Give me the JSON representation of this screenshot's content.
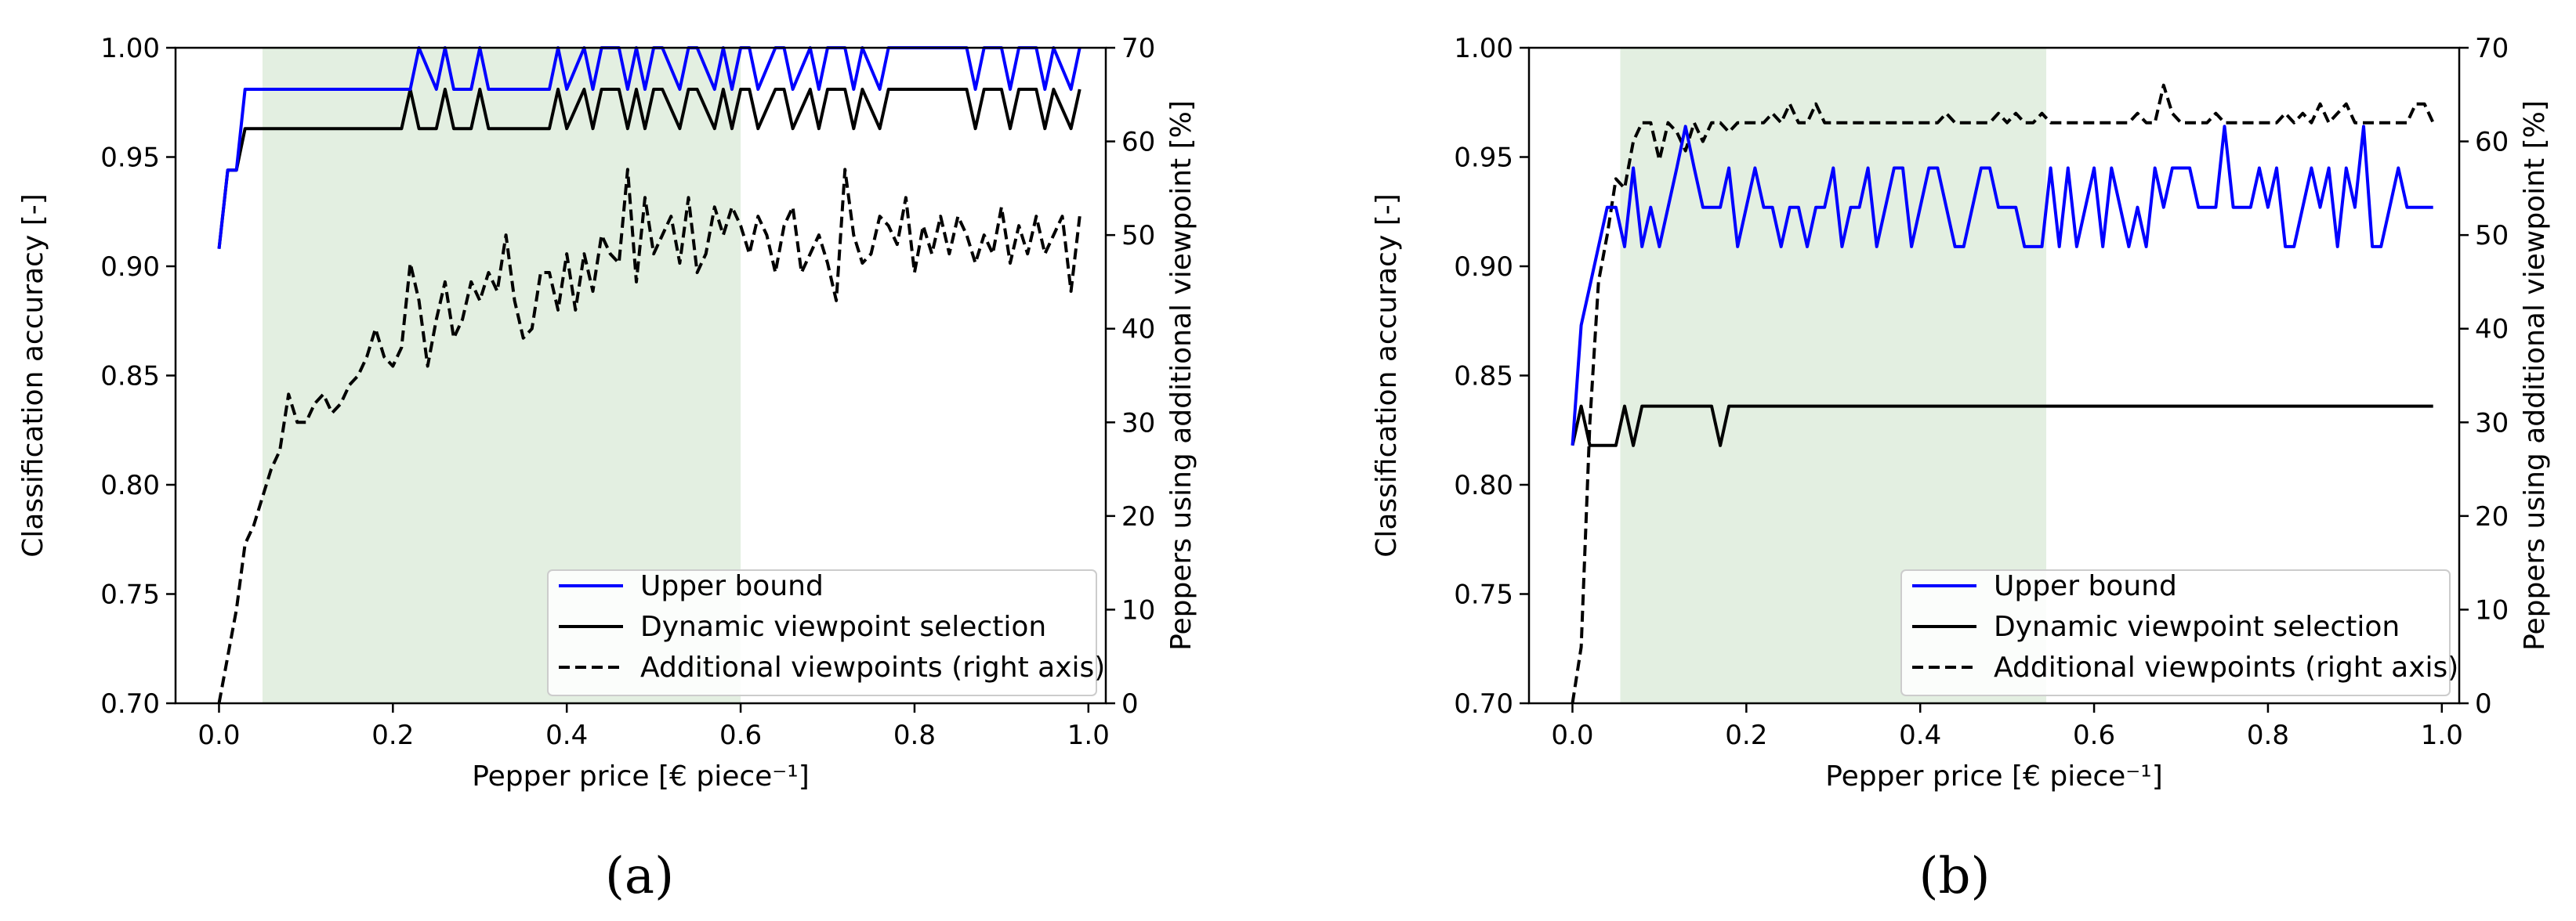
{
  "figure": {
    "colors": {
      "upper_bound": "#0000ff",
      "dynamic": "#000000",
      "additional": "#000000",
      "shade": "#e3efe1"
    }
  },
  "chart_data": [
    {
      "type": "line",
      "panel_label": "(a)",
      "xlabel": "Pepper price [€ piece⁻¹]",
      "ylabel": "Classification accuracy [-]",
      "y2label": "Peppers using additional viewpoint [%]",
      "xlim": [
        -0.05,
        1.02
      ],
      "ylim": [
        0.7,
        1.0
      ],
      "y2lim": [
        0,
        70
      ],
      "xticks": [
        "0.0",
        "0.2",
        "0.4",
        "0.6",
        "0.8",
        "1.0"
      ],
      "yticks": [
        "0.70",
        "0.75",
        "0.80",
        "0.85",
        "0.90",
        "0.95",
        "1.00"
      ],
      "y2ticks": [
        "0",
        "10",
        "20",
        "30",
        "40",
        "50",
        "60",
        "70"
      ],
      "shaded_region": [
        0.05,
        0.6
      ],
      "legend_position": "lower-right",
      "series": [
        {
          "name": "Upper bound",
          "axis": "left",
          "x": [
            0.0,
            0.01,
            0.02,
            0.03,
            0.22,
            0.23,
            0.25,
            0.26,
            0.27,
            0.29,
            0.3,
            0.31,
            0.38,
            0.39,
            0.4,
            0.42,
            0.43,
            0.44,
            0.46,
            0.47,
            0.48,
            0.49,
            0.5,
            0.51,
            0.53,
            0.54,
            0.55,
            0.57,
            0.58,
            0.59,
            0.6,
            0.61,
            0.62,
            0.64,
            0.65,
            0.66,
            0.68,
            0.69,
            0.7,
            0.72,
            0.73,
            0.74,
            0.76,
            0.77,
            0.78,
            0.86,
            0.87,
            0.88,
            0.9,
            0.91,
            0.92,
            0.94,
            0.95,
            0.96,
            0.98,
            0.99
          ],
          "values": [
            0.908,
            0.944,
            0.944,
            0.981,
            0.981,
            1.0,
            0.981,
            1.0,
            0.981,
            0.981,
            1.0,
            0.981,
            0.981,
            1.0,
            0.981,
            1.0,
            0.981,
            1.0,
            1.0,
            0.981,
            1.0,
            0.981,
            1.0,
            1.0,
            0.981,
            1.0,
            1.0,
            0.981,
            1.0,
            0.981,
            1.0,
            1.0,
            0.981,
            1.0,
            1.0,
            0.981,
            1.0,
            0.981,
            1.0,
            1.0,
            0.981,
            1.0,
            0.981,
            1.0,
            1.0,
            1.0,
            0.981,
            1.0,
            1.0,
            0.981,
            1.0,
            1.0,
            0.981,
            1.0,
            0.981,
            1.0
          ]
        },
        {
          "name": "Dynamic viewpoint selection",
          "axis": "left",
          "x": [
            0.0,
            0.01,
            0.02,
            0.03,
            0.21,
            0.22,
            0.23,
            0.25,
            0.26,
            0.27,
            0.29,
            0.3,
            0.31,
            0.38,
            0.39,
            0.4,
            0.42,
            0.43,
            0.44,
            0.46,
            0.47,
            0.48,
            0.49,
            0.5,
            0.51,
            0.53,
            0.54,
            0.55,
            0.57,
            0.58,
            0.59,
            0.6,
            0.61,
            0.62,
            0.64,
            0.65,
            0.66,
            0.68,
            0.69,
            0.7,
            0.72,
            0.73,
            0.74,
            0.76,
            0.77,
            0.78,
            0.86,
            0.87,
            0.88,
            0.9,
            0.91,
            0.92,
            0.94,
            0.95,
            0.96,
            0.98,
            0.99
          ],
          "values": [
            0.908,
            0.944,
            0.944,
            0.963,
            0.963,
            0.981,
            0.963,
            0.963,
            0.981,
            0.963,
            0.963,
            0.981,
            0.963,
            0.963,
            0.981,
            0.963,
            0.981,
            0.963,
            0.981,
            0.981,
            0.963,
            0.981,
            0.963,
            0.981,
            0.981,
            0.963,
            0.981,
            0.981,
            0.963,
            0.981,
            0.963,
            0.981,
            0.981,
            0.963,
            0.981,
            0.981,
            0.963,
            0.981,
            0.963,
            0.981,
            0.981,
            0.963,
            0.981,
            0.963,
            0.981,
            0.981,
            0.981,
            0.963,
            0.981,
            0.981,
            0.963,
            0.981,
            0.981,
            0.963,
            0.981,
            0.963,
            0.981
          ]
        },
        {
          "name": "Additional viewpoints (right axis)",
          "axis": "right",
          "style": "dashed",
          "x": [
            0.0,
            0.01,
            0.02,
            0.03,
            0.04,
            0.05,
            0.06,
            0.07,
            0.08,
            0.09,
            0.1,
            0.11,
            0.12,
            0.13,
            0.14,
            0.15,
            0.16,
            0.17,
            0.18,
            0.19,
            0.2,
            0.21,
            0.22,
            0.23,
            0.24,
            0.25,
            0.26,
            0.27,
            0.28,
            0.29,
            0.3,
            0.31,
            0.32,
            0.33,
            0.34,
            0.35,
            0.36,
            0.37,
            0.38,
            0.39,
            0.4,
            0.41,
            0.42,
            0.43,
            0.44,
            0.45,
            0.46,
            0.47,
            0.48,
            0.49,
            0.5,
            0.51,
            0.52,
            0.53,
            0.54,
            0.55,
            0.56,
            0.57,
            0.58,
            0.59,
            0.6,
            0.61,
            0.62,
            0.63,
            0.64,
            0.65,
            0.66,
            0.67,
            0.68,
            0.69,
            0.7,
            0.71,
            0.72,
            0.73,
            0.74,
            0.75,
            0.76,
            0.77,
            0.78,
            0.79,
            0.8,
            0.81,
            0.82,
            0.83,
            0.84,
            0.85,
            0.86,
            0.87,
            0.88,
            0.89,
            0.9,
            0.91,
            0.92,
            0.93,
            0.94,
            0.95,
            0.96,
            0.97,
            0.98,
            0.99
          ],
          "values": [
            0,
            5,
            10,
            17,
            19,
            22,
            25,
            27,
            33,
            30,
            30,
            32,
            33,
            31,
            32,
            34,
            35,
            37,
            40,
            37,
            36,
            38,
            47,
            43,
            36,
            41,
            45,
            39,
            41,
            45,
            43,
            46,
            44,
            50,
            43,
            39,
            40,
            46,
            46,
            42,
            48,
            42,
            48,
            44,
            50,
            48,
            47,
            57,
            45,
            54,
            48,
            50,
            52,
            47,
            54,
            46,
            48,
            53,
            50,
            53,
            51,
            48,
            52,
            50,
            46,
            51,
            53,
            46,
            48,
            50,
            47,
            43,
            57,
            50,
            47,
            48,
            52,
            51,
            49,
            54,
            46,
            51,
            48,
            52,
            48,
            52,
            50,
            47,
            50,
            48,
            53,
            47,
            51,
            48,
            52,
            48,
            50,
            52,
            44,
            52
          ]
        }
      ]
    },
    {
      "type": "line",
      "panel_label": "(b)",
      "xlabel": "Pepper price [€ piece⁻¹]",
      "ylabel": "Classification accuracy [-]",
      "y2label": "Peppers using additional viewpoint [%]",
      "xlim": [
        -0.05,
        1.02
      ],
      "ylim": [
        0.7,
        1.0
      ],
      "y2lim": [
        0,
        70
      ],
      "xticks": [
        "0.0",
        "0.2",
        "0.4",
        "0.6",
        "0.8",
        "1.0"
      ],
      "yticks": [
        "0.70",
        "0.75",
        "0.80",
        "0.85",
        "0.90",
        "0.95",
        "1.00"
      ],
      "y2ticks": [
        "0",
        "10",
        "20",
        "30",
        "40",
        "50",
        "60",
        "70"
      ],
      "shaded_region": [
        0.055,
        0.545
      ],
      "legend_position": "lower-right",
      "series": [
        {
          "name": "Upper bound",
          "axis": "left",
          "x": [
            0.0,
            0.01,
            0.02,
            0.03,
            0.04,
            0.05,
            0.06,
            0.07,
            0.08,
            0.09,
            0.1,
            0.11,
            0.12,
            0.13,
            0.14,
            0.15,
            0.16,
            0.17,
            0.18,
            0.19,
            0.2,
            0.21,
            0.22,
            0.23,
            0.24,
            0.25,
            0.26,
            0.27,
            0.28,
            0.29,
            0.3,
            0.31,
            0.32,
            0.33,
            0.34,
            0.35,
            0.36,
            0.37,
            0.38,
            0.39,
            0.4,
            0.41,
            0.42,
            0.43,
            0.44,
            0.45,
            0.46,
            0.47,
            0.48,
            0.49,
            0.5,
            0.51,
            0.52,
            0.53,
            0.54,
            0.55,
            0.56,
            0.57,
            0.58,
            0.59,
            0.6,
            0.61,
            0.62,
            0.63,
            0.64,
            0.65,
            0.66,
            0.67,
            0.68,
            0.69,
            0.7,
            0.71,
            0.72,
            0.73,
            0.74,
            0.75,
            0.76,
            0.77,
            0.78,
            0.79,
            0.8,
            0.81,
            0.82,
            0.83,
            0.84,
            0.85,
            0.86,
            0.87,
            0.88,
            0.89,
            0.9,
            0.91,
            0.92,
            0.93,
            0.94,
            0.95,
            0.96,
            0.97,
            0.98,
            0.99
          ],
          "values": [
            0.818,
            0.873,
            0.891,
            0.909,
            0.927,
            0.927,
            0.909,
            0.945,
            0.909,
            0.927,
            0.909,
            0.927,
            0.945,
            0.964,
            0.945,
            0.927,
            0.927,
            0.927,
            0.945,
            0.909,
            0.927,
            0.945,
            0.927,
            0.927,
            0.909,
            0.927,
            0.927,
            0.909,
            0.927,
            0.927,
            0.945,
            0.909,
            0.927,
            0.927,
            0.945,
            0.909,
            0.927,
            0.945,
            0.945,
            0.909,
            0.927,
            0.945,
            0.945,
            0.927,
            0.909,
            0.909,
            0.927,
            0.945,
            0.945,
            0.927,
            0.927,
            0.927,
            0.909,
            0.909,
            0.909,
            0.945,
            0.909,
            0.945,
            0.909,
            0.927,
            0.945,
            0.909,
            0.945,
            0.927,
            0.909,
            0.927,
            0.909,
            0.945,
            0.927,
            0.945,
            0.945,
            0.945,
            0.927,
            0.927,
            0.927,
            0.964,
            0.927,
            0.927,
            0.927,
            0.945,
            0.927,
            0.945,
            0.909,
            0.909,
            0.927,
            0.945,
            0.927,
            0.945,
            0.909,
            0.945,
            0.927,
            0.964,
            0.909,
            0.909,
            0.927,
            0.945,
            0.927,
            0.927,
            0.927,
            0.927
          ]
        },
        {
          "name": "Dynamic viewpoint selection",
          "axis": "left",
          "x": [
            0.0,
            0.01,
            0.02,
            0.03,
            0.05,
            0.06,
            0.07,
            0.08,
            0.16,
            0.17,
            0.18,
            0.99
          ],
          "values": [
            0.818,
            0.836,
            0.818,
            0.818,
            0.818,
            0.836,
            0.818,
            0.836,
            0.836,
            0.818,
            0.836,
            0.836
          ]
        },
        {
          "name": "Additional viewpoints (right axis)",
          "axis": "right",
          "style": "dashed",
          "x": [
            0.0,
            0.01,
            0.02,
            0.03,
            0.04,
            0.05,
            0.06,
            0.07,
            0.08,
            0.09,
            0.1,
            0.11,
            0.12,
            0.13,
            0.14,
            0.15,
            0.16,
            0.17,
            0.18,
            0.19,
            0.2,
            0.21,
            0.22,
            0.23,
            0.24,
            0.25,
            0.26,
            0.27,
            0.28,
            0.29,
            0.3,
            0.31,
            0.32,
            0.33,
            0.34,
            0.35,
            0.36,
            0.37,
            0.38,
            0.39,
            0.4,
            0.41,
            0.42,
            0.43,
            0.44,
            0.45,
            0.46,
            0.47,
            0.48,
            0.49,
            0.5,
            0.51,
            0.52,
            0.53,
            0.54,
            0.55,
            0.56,
            0.57,
            0.58,
            0.59,
            0.6,
            0.61,
            0.62,
            0.63,
            0.64,
            0.65,
            0.66,
            0.67,
            0.68,
            0.69,
            0.7,
            0.71,
            0.72,
            0.73,
            0.74,
            0.75,
            0.76,
            0.77,
            0.78,
            0.79,
            0.8,
            0.81,
            0.82,
            0.83,
            0.84,
            0.85,
            0.86,
            0.87,
            0.88,
            0.89,
            0.9,
            0.91,
            0.92,
            0.93,
            0.94,
            0.95,
            0.96,
            0.97,
            0.98,
            0.99
          ],
          "values": [
            0,
            6,
            30,
            45,
            50,
            56,
            55,
            60,
            62,
            62,
            58,
            62,
            61,
            59,
            62,
            60,
            62,
            62,
            61,
            62,
            62,
            62,
            62,
            63,
            62,
            64,
            62,
            62,
            64,
            62,
            62,
            62,
            62,
            62,
            62,
            62,
            62,
            62,
            62,
            62,
            62,
            62,
            62,
            63,
            62,
            62,
            62,
            62,
            62,
            63,
            62,
            63,
            62,
            62,
            63,
            62,
            62,
            62,
            62,
            62,
            62,
            62,
            62,
            62,
            62,
            63,
            62,
            62,
            66,
            63,
            62,
            62,
            62,
            62,
            63,
            62,
            62,
            62,
            62,
            62,
            62,
            62,
            63,
            62,
            63,
            62,
            64,
            62,
            63,
            64,
            62,
            62,
            62,
            62,
            62,
            62,
            62,
            64,
            64,
            62
          ]
        }
      ]
    }
  ]
}
